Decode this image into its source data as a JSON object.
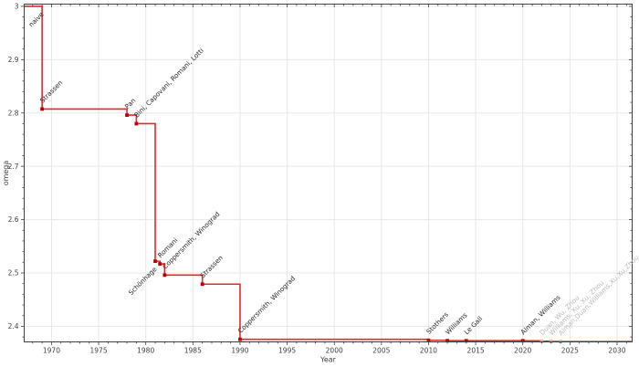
{
  "figure": {
    "description": "Step chart of the best known upper bound on the matrix multiplication exponent omega by year of publication"
  },
  "chart_data": {
    "type": "line",
    "subtype": "step-post",
    "title": "",
    "xlabel": "Year",
    "ylabel": "omega",
    "xlim": [
      1967.1,
      2031.6
    ],
    "ylim": [
      2.3707,
      3.0042
    ],
    "grid": true,
    "legend": "none",
    "x_major_ticks": [
      1970,
      1975,
      1980,
      1985,
      1990,
      1995,
      2000,
      2005,
      2010,
      2015,
      2020,
      2025,
      2030
    ],
    "x_minor_step": 1,
    "y_major_ticks": [
      {
        "value": 3.0,
        "label": "3"
      },
      {
        "value": 2.9,
        "label": "2.9"
      },
      {
        "value": 2.8,
        "label": "2.8"
      },
      {
        "value": 2.7,
        "label": "2.7"
      },
      {
        "value": 2.6,
        "label": "2.6"
      },
      {
        "value": 2.5,
        "label": "2.5"
      },
      {
        "value": 2.4,
        "label": "2.4"
      }
    ],
    "y_minor_step": 0.02,
    "colors": {
      "line": "#e12929",
      "marker": "#bb0000",
      "faded_marker": "#f4aaaa",
      "annotation": "#262626",
      "faded_annotation": "#b8b8b8",
      "spine": "#404040",
      "tick_label": "#3d3d3d",
      "grid": "#e7e7e7",
      "background": "#ffffff"
    },
    "start_value": 3.0,
    "points": [
      {
        "year": 1969,
        "omega": 3.0,
        "label": "naive",
        "label_side": "below",
        "marker": false,
        "faded": false
      },
      {
        "year": 1969,
        "omega": 2.8074,
        "label": "Strassen",
        "label_side": "above",
        "marker": true,
        "faded": false
      },
      {
        "year": 1978,
        "omega": 2.796,
        "label": "Pan",
        "label_side": "above",
        "marker": true,
        "faded": false
      },
      {
        "year": 1979,
        "omega": 2.78,
        "label": "Bini, Capovani, Romani, Lotti",
        "label_side": "above",
        "marker": true,
        "faded": false
      },
      {
        "year": 1981,
        "omega": 2.522,
        "label": "Schönhage",
        "label_side": "below",
        "marker": true,
        "faded": false
      },
      {
        "year": 1981.5,
        "omega": 2.517,
        "label": "Romani",
        "label_side": "above",
        "marker": true,
        "faded": false
      },
      {
        "year": 1982,
        "omega": 2.496,
        "label": "Coppersmith, Winograd",
        "label_side": "above",
        "marker": true,
        "faded": false
      },
      {
        "year": 1986,
        "omega": 2.479,
        "label": "Strassen",
        "label_side": "above",
        "marker": true,
        "faded": false
      },
      {
        "year": 1990,
        "omega": 2.3755,
        "label": "Coppersmith, Winograd",
        "label_side": "above",
        "marker": true,
        "faded": false
      },
      {
        "year": 2010,
        "omega": 2.3737,
        "label": "Stothers",
        "label_side": "above",
        "marker": true,
        "faded": false
      },
      {
        "year": 2012,
        "omega": 2.3729,
        "label": "Williams",
        "label_side": "above",
        "marker": true,
        "faded": false
      },
      {
        "year": 2014,
        "omega": 2.3728639,
        "label": "Le Gall",
        "label_side": "above",
        "marker": true,
        "faded": false
      },
      {
        "year": 2020,
        "omega": 2.3728596,
        "label": "Alman, Williams",
        "label_side": "above",
        "marker": true,
        "faded": false
      },
      {
        "year": 2022,
        "omega": 2.371866,
        "label": "Duan, Wu, Zhou",
        "label_side": "above",
        "marker": true,
        "faded": true
      },
      {
        "year": 2023,
        "omega": 2.371552,
        "label": "Williams, Xu, Xu, Zhou",
        "label_side": "above",
        "marker": true,
        "faded": true
      },
      {
        "year": 2024,
        "omega": 2.371339,
        "label": "Alman,Duan,Williams,Xu,Xu,Zhou",
        "label_side": "above",
        "marker": true,
        "faded": true
      }
    ]
  }
}
